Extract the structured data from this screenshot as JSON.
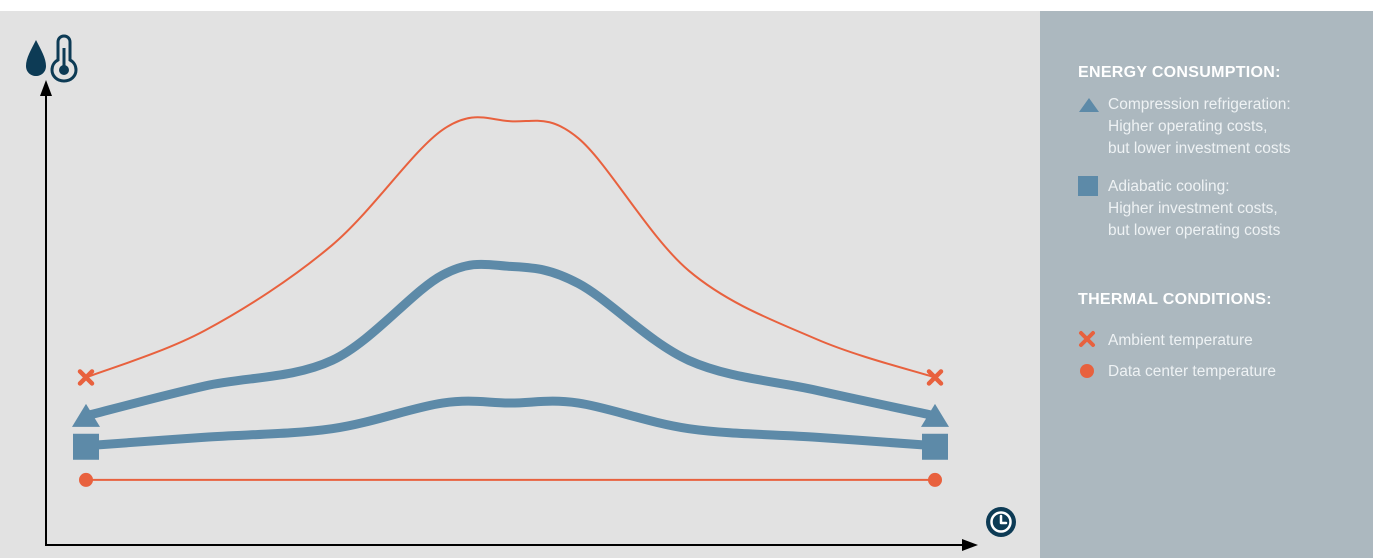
{
  "colors": {
    "plot_background": "#e2e2e2",
    "legend_background": "#acb8bf",
    "blue": "#5d8aa8",
    "orange": "#e8613e",
    "icon_navy": "#0d3b55"
  },
  "icons": {
    "y_axis": [
      "water-drop-icon",
      "thermometer-icon"
    ],
    "x_axis": "clock-icon"
  },
  "legend": {
    "energy_heading": "ENERGY CONSUMPTION:",
    "energy_items": [
      {
        "marker": "triangle",
        "lines": [
          "Compression refrigeration:",
          "Higher operating costs,",
          "but lower investment costs"
        ]
      },
      {
        "marker": "square",
        "lines": [
          "Adiabatic cooling:",
          "Higher investment costs,",
          "but lower operating costs"
        ]
      }
    ],
    "thermal_heading": "THERMAL CONDITIONS:",
    "thermal_items": [
      {
        "marker": "cross",
        "lines": [
          "Ambient temperature"
        ]
      },
      {
        "marker": "circle",
        "lines": [
          "Data center temperature"
        ]
      }
    ]
  },
  "chart_data": {
    "type": "line",
    "title": "",
    "xlabel": "",
    "ylabel": "",
    "xlim": [
      0,
      1
    ],
    "ylim": [
      0,
      1
    ],
    "grid": false,
    "axis_ticks": false,
    "legend_placement": "right",
    "series": [
      {
        "name": "Ambient temperature",
        "marker": "cross",
        "color": "#e8613e",
        "x": [
          0,
          0.14,
          0.29,
          0.42,
          0.5,
          0.58,
          0.71,
          0.86,
          1.0
        ],
        "y": [
          0.28,
          0.39,
          0.59,
          0.86,
          0.88,
          0.84,
          0.53,
          0.37,
          0.28
        ]
      },
      {
        "name": "Compression refrigeration",
        "marker": "triangle",
        "color": "#5d8aa8",
        "x": [
          0,
          0.14,
          0.29,
          0.42,
          0.5,
          0.58,
          0.71,
          0.86,
          1.0
        ],
        "y": [
          0.19,
          0.26,
          0.32,
          0.52,
          0.54,
          0.5,
          0.32,
          0.25,
          0.19
        ]
      },
      {
        "name": "Adiabatic cooling",
        "marker": "square",
        "color": "#5d8aa8",
        "x": [
          0,
          0.14,
          0.29,
          0.42,
          0.5,
          0.58,
          0.71,
          0.86,
          1.0
        ],
        "y": [
          0.12,
          0.14,
          0.16,
          0.22,
          0.22,
          0.22,
          0.16,
          0.14,
          0.12
        ]
      },
      {
        "name": "Data center temperature",
        "marker": "circle",
        "color": "#e8613e",
        "x": [
          0,
          1.0
        ],
        "y": [
          0.04,
          0.04
        ]
      }
    ]
  }
}
